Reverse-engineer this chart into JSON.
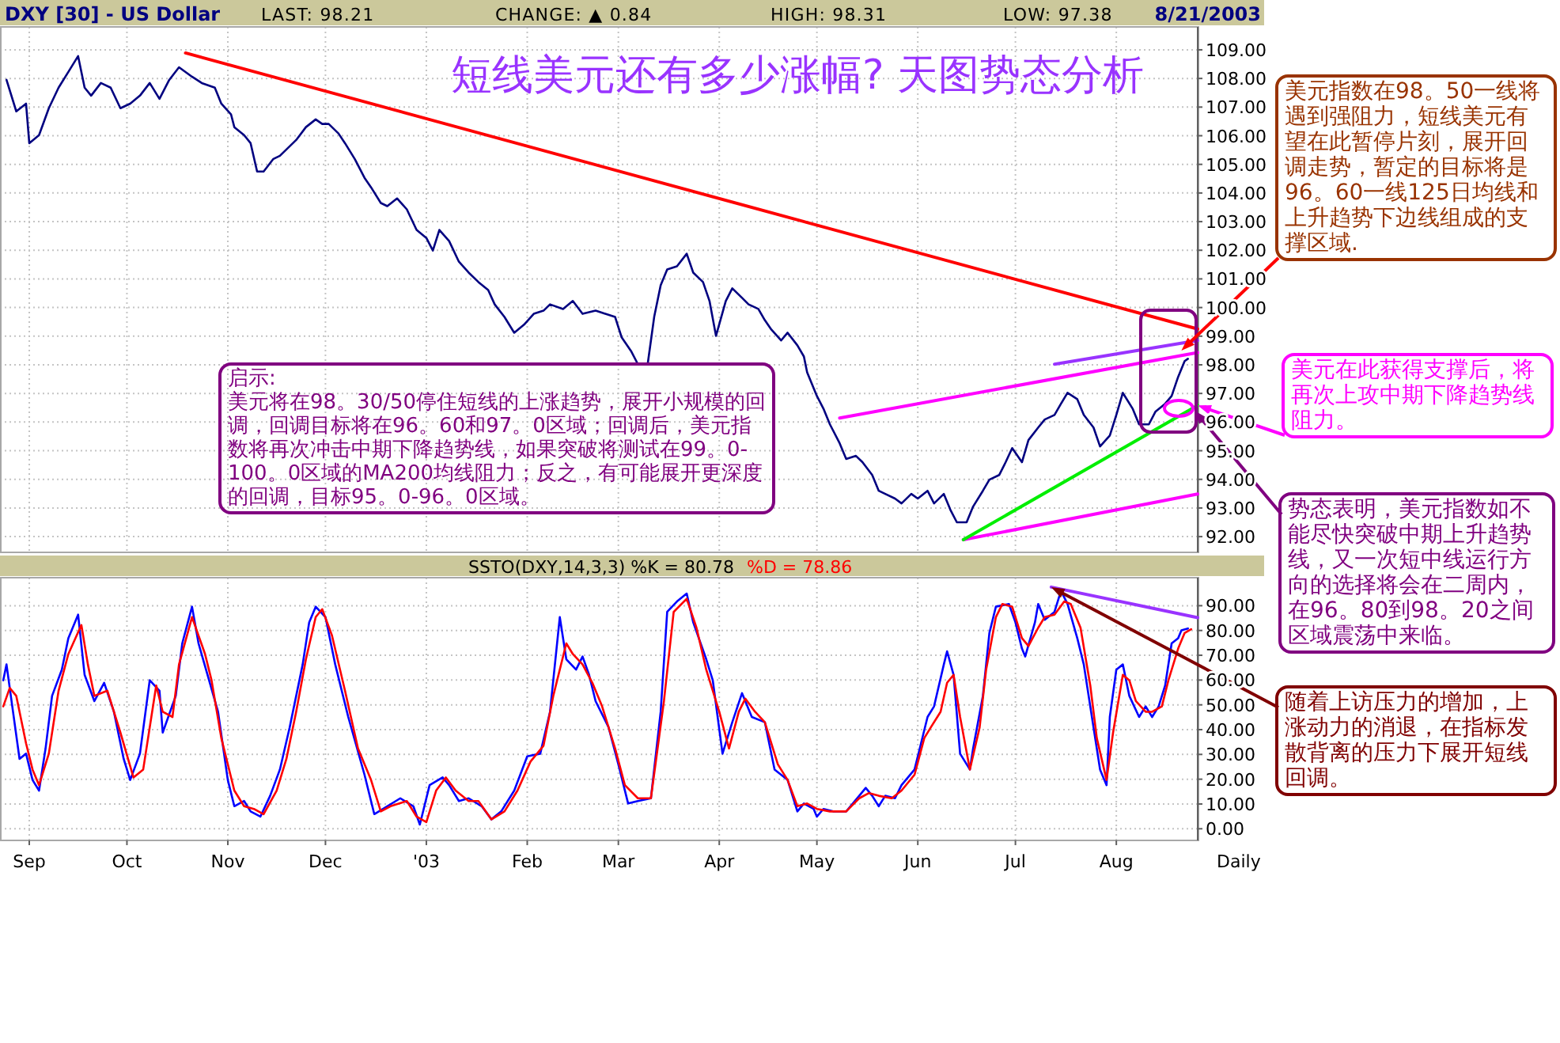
{
  "chart_data": [
    {
      "type": "line",
      "title": "DXY [30] - US Dollar",
      "subtitle": "短线美元还有多少涨幅? 天图势态分析",
      "annotations": [
        "LAST: 98.21",
        "CHANGE: ▲ 0.84",
        "HIGH: 98.31",
        "LOW: 97.38",
        "8/21/2003",
        "启示:\n美元将在98。30/50停住短线的上涨趋势，展开小规模的回调，回调目标将在96。60和97。0区域；回调后，美元指数将再次冲击中期下降趋势线，如果突破将测试在99。0-100。0区域的MA200均线阻力；反之，有可能展开更深度的回调，目标95。0-96。0区域。",
        {
          "text": "美元指数在98。50一线将遇到强阻力，短线美元有望在此暂停片刻，展开回调走势，暂定的目标将是96。60一线125日均线和上升趋势下边线组成的支撑区域.",
          "x": "2003-08-21",
          "y": 98.5
        },
        {
          "text": "美元在此获得支撑后，将再次上攻中期下降趋势线阻力。",
          "x": "2003-08-26",
          "y": 96.58
        },
        {
          "text": "势态表明，美元指数如不能尽快突破中期上升趋势线，又一次短中线运行方向的选择将会在二周内，在96。80到98。20之间区域震荡中来临。",
          "x": "2003-08-25",
          "y": 96.4
        }
      ],
      "xlim": [
        "2002-08-23",
        "2003-08-26"
      ],
      "xticks": [
        {
          "value": "2002-09-01",
          "label": null
        },
        {
          "value": "2002-10-01",
          "label": null
        },
        {
          "value": "2002-11-01",
          "label": null
        },
        {
          "value": "2002-12-01",
          "label": null
        },
        {
          "value": "2003-01-01",
          "label": null
        },
        {
          "value": "2003-02-01",
          "label": null
        },
        {
          "value": "2003-03-01",
          "label": null
        },
        {
          "value": "2003-04-01",
          "label": null
        },
        {
          "value": "2003-05-01",
          "label": null
        },
        {
          "value": "2003-06-01",
          "label": null
        },
        {
          "value": "2003-07-01",
          "label": null
        },
        {
          "value": "2003-08-01",
          "label": null
        }
      ],
      "ylim": [
        91.45,
        109.8
      ],
      "yticks": [
        {
          "value": 92,
          "label": "92.00"
        },
        {
          "value": 93,
          "label": "93.00"
        },
        {
          "value": 94,
          "label": "94.00"
        },
        {
          "value": 95,
          "label": "95.00"
        },
        {
          "value": 96,
          "label": "96.00"
        },
        {
          "value": 97,
          "label": "97.00"
        },
        {
          "value": 98,
          "label": "98.00"
        },
        {
          "value": 99,
          "label": "99.00"
        },
        {
          "value": 100,
          "label": "100.00"
        },
        {
          "value": 101,
          "label": "101.00"
        },
        {
          "value": 102,
          "label": "102.00"
        },
        {
          "value": 103,
          "label": "103.00"
        },
        {
          "value": 104,
          "label": "104.00"
        },
        {
          "value": 105,
          "label": "105.00"
        },
        {
          "value": 106,
          "label": "106.00"
        },
        {
          "value": 107,
          "label": "107.00"
        },
        {
          "value": 108,
          "label": "108.00"
        },
        {
          "value": 109,
          "label": "109.00"
        }
      ],
      "grid": true,
      "tick_labels": "y",
      "series": [
        {
          "color": "#000080",
          "x": [
            "2002-08-25",
            "2002-08-28",
            "2002-08-31",
            "2002-09-01",
            "2002-09-04",
            "2002-09-07",
            "2002-09-10",
            "2002-09-13",
            "2002-09-16",
            "2002-09-18",
            "2002-09-20",
            "2002-09-23",
            "2002-09-26",
            "2002-09-29",
            "2002-10-02",
            "2002-10-05",
            "2002-10-08",
            "2002-10-11",
            "2002-10-14",
            "2002-10-17",
            "2002-10-21",
            "2002-10-24",
            "2002-10-28",
            "2002-10-30",
            "2002-11-02",
            "2002-11-03",
            "2002-11-06",
            "2002-11-08",
            "2002-11-10",
            "2002-11-12",
            "2002-11-15",
            "2002-11-17",
            "2002-11-20",
            "2002-11-22",
            "2002-11-25",
            "2002-11-28",
            "2002-11-30",
            "2002-12-02",
            "2002-12-05",
            "2002-12-07",
            "2002-12-10",
            "2002-12-13",
            "2002-12-15",
            "2002-12-18",
            "2002-12-20",
            "2002-12-23",
            "2002-12-26",
            "2002-12-29",
            "2003-01-01",
            "2003-01-03",
            "2003-01-05",
            "2003-01-08",
            "2003-01-11",
            "2003-01-14",
            "2003-01-17",
            "2003-01-20",
            "2003-01-22",
            "2003-01-25",
            "2003-01-28",
            "2003-01-31",
            "2003-02-03",
            "2003-02-06",
            "2003-02-08",
            "2003-02-12",
            "2003-02-15",
            "2003-02-18",
            "2003-02-22",
            "2003-02-25",
            "2003-02-28",
            "2003-03-02",
            "2003-03-05",
            "2003-03-07",
            "2003-03-10",
            "2003-03-12",
            "2003-03-14",
            "2003-03-16",
            "2003-03-19",
            "2003-03-22",
            "2003-03-24",
            "2003-03-27",
            "2003-03-29",
            "2003-03-31",
            "2003-04-03",
            "2003-04-05",
            "2003-04-08",
            "2003-04-10",
            "2003-04-13",
            "2003-04-15",
            "2003-04-17",
            "2003-04-20",
            "2003-04-22",
            "2003-04-25",
            "2003-04-27",
            "2003-04-28",
            "2003-05-01",
            "2003-05-03",
            "2003-05-05",
            "2003-05-08",
            "2003-05-10",
            "2003-05-13",
            "2003-05-15",
            "2003-05-18",
            "2003-05-20",
            "2003-05-22",
            "2003-05-25",
            "2003-05-27",
            "2003-05-30",
            "2003-06-01",
            "2003-06-04",
            "2003-06-06",
            "2003-06-09",
            "2003-06-11",
            "2003-06-13",
            "2003-06-16",
            "2003-06-18",
            "2003-06-21",
            "2003-06-23",
            "2003-06-26",
            "2003-06-28",
            "2003-06-30",
            "2003-07-03",
            "2003-07-05",
            "2003-07-08",
            "2003-07-10",
            "2003-07-13",
            "2003-07-15",
            "2003-07-17",
            "2003-07-20",
            "2003-07-22",
            "2003-07-25",
            "2003-07-27",
            "2003-07-30",
            "2003-08-01",
            "2003-08-03",
            "2003-08-06",
            "2003-08-08",
            "2003-08-11",
            "2003-08-13",
            "2003-08-16",
            "2003-08-18",
            "2003-08-20",
            "2003-08-22",
            "2003-08-23"
          ],
          "values": [
            107.95,
            106.85,
            107.12,
            105.74,
            106.02,
            106.96,
            107.68,
            108.23,
            108.78,
            107.68,
            107.4,
            107.84,
            107.68,
            106.96,
            107.12,
            107.4,
            107.84,
            107.29,
            107.95,
            108.39,
            108.06,
            107.84,
            107.68,
            107.12,
            106.74,
            106.3,
            106.02,
            105.74,
            104.75,
            104.75,
            105.19,
            105.3,
            105.63,
            105.85,
            106.3,
            106.57,
            106.41,
            106.41,
            106.08,
            105.74,
            105.19,
            104.53,
            104.2,
            103.65,
            103.54,
            103.81,
            103.43,
            102.71,
            102.43,
            101.99,
            102.71,
            102.32,
            101.6,
            101.22,
            100.89,
            100.61,
            100.11,
            99.67,
            99.12,
            99.4,
            99.78,
            99.89,
            100.11,
            99.95,
            100.23,
            99.78,
            99.89,
            99.78,
            99.67,
            98.96,
            98.46,
            98.02,
            98.02,
            99.67,
            100.78,
            101.33,
            101.44,
            101.88,
            101.22,
            100.89,
            100.23,
            99.01,
            100.23,
            100.67,
            100.34,
            100.11,
            99.95,
            99.56,
            99.23,
            98.85,
            99.12,
            98.68,
            98.29,
            97.74,
            96.91,
            96.47,
            95.92,
            95.26,
            94.71,
            94.82,
            94.6,
            94.15,
            93.6,
            93.49,
            93.33,
            93.16,
            93.49,
            93.33,
            93.6,
            93.16,
            93.49,
            92.94,
            92.5,
            92.5,
            93.05,
            93.6,
            93.99,
            94.15,
            94.6,
            95.09,
            94.6,
            95.37,
            95.81,
            96.09,
            96.25,
            96.64,
            97.02,
            96.8,
            96.25,
            95.81,
            95.15,
            95.53,
            96.25,
            97.02,
            96.47,
            95.92,
            95.92,
            96.36,
            96.64,
            96.91,
            97.58,
            98.13,
            98.21
          ]
        },
        {
          "type": "line",
          "color": "#ff0000",
          "x": [
            "2002-10-19",
            "2003-08-26"
          ],
          "values": [
            108.89,
            99.25
          ]
        },
        {
          "type": "line",
          "color": "#9933ff",
          "x": [
            "2003-07-13",
            "2003-08-26"
          ],
          "values": [
            98.02,
            98.85
          ]
        },
        {
          "type": "line",
          "color": "#ff00ff",
          "x": [
            "2003-05-08",
            "2003-08-26"
          ],
          "values": [
            96.14,
            98.43
          ]
        },
        {
          "type": "line",
          "color": "#ff00ff",
          "x": [
            "2003-06-15",
            "2003-08-26"
          ],
          "values": [
            91.89,
            93.49
          ]
        },
        {
          "type": "line",
          "color": "#00ee00",
          "x": [
            "2003-06-15",
            "2003-08-26"
          ],
          "values": [
            91.89,
            96.58
          ]
        }
      ]
    },
    {
      "type": "line",
      "title": "SSTO(DXY,14,3,3) %K = 80.78",
      "xlabel": "Daily",
      "annotations": [
        {
          "text": "随着上访压力的增加，上涨动力的消退，在指标发散背离的压力下展开短线回调。",
          "x": "2003-07-12",
          "y": 97.5
        }
      ],
      "xlim": [
        "2002-08-23",
        "2003-08-26"
      ],
      "xticks": [
        {
          "value": "2002-09-01",
          "label": "Sep"
        },
        {
          "value": "2002-10-01",
          "label": "Oct"
        },
        {
          "value": "2002-11-01",
          "label": "Nov"
        },
        {
          "value": "2002-12-01",
          "label": "Dec"
        },
        {
          "value": "2003-01-01",
          "label": "'03"
        },
        {
          "value": "2003-02-01",
          "label": "Feb"
        },
        {
          "value": "2003-03-01",
          "label": "Mar"
        },
        {
          "value": "2003-04-01",
          "label": "Apr"
        },
        {
          "value": "2003-05-01",
          "label": "May"
        },
        {
          "value": "2003-06-01",
          "label": "Jun"
        },
        {
          "value": "2003-07-01",
          "label": "Jul"
        },
        {
          "value": "2003-08-01",
          "label": "Aug"
        }
      ],
      "ylim": [
        -4.7,
        101.3
      ],
      "yticks": [
        {
          "value": 0,
          "label": "0.00"
        },
        {
          "value": 10,
          "label": "10.00"
        },
        {
          "value": 20,
          "label": "20.00"
        },
        {
          "value": 30,
          "label": "30.00"
        },
        {
          "value": 40,
          "label": "40.00"
        },
        {
          "value": 50,
          "label": "50.00"
        },
        {
          "value": 60,
          "label": "60.00"
        },
        {
          "value": 70,
          "label": "70.00"
        },
        {
          "value": 80,
          "label": "80.00"
        },
        {
          "value": 90,
          "label": "90.00"
        }
      ],
      "grid": true,
      "series": [
        {
          "color": "#0000ff",
          "x": [
            "2002-08-24",
            "2002-08-25",
            "2002-08-27",
            "2002-08-29",
            "2002-08-31",
            "2002-09-02",
            "2002-09-04",
            "2002-09-06",
            "2002-09-08",
            "2002-09-11",
            "2002-09-13",
            "2002-09-16",
            "2002-09-18",
            "2002-09-21",
            "2002-09-24",
            "2002-09-27",
            "2002-09-30",
            "2002-10-02",
            "2002-10-05",
            "2002-10-08",
            "2002-10-11",
            "2002-10-12",
            "2002-10-16",
            "2002-10-18",
            "2002-10-21",
            "2002-10-23",
            "2002-10-26",
            "2002-10-29",
            "2002-11-01",
            "2002-11-03",
            "2002-11-06",
            "2002-11-08",
            "2002-11-11",
            "2002-11-14",
            "2002-11-17",
            "2002-11-20",
            "2002-11-24",
            "2002-11-26",
            "2002-11-28",
            "2002-12-01",
            "2002-12-04",
            "2002-12-08",
            "2002-12-13",
            "2002-12-16",
            "2002-12-20",
            "2002-12-24",
            "2002-12-28",
            "2002-12-30",
            "2003-01-02",
            "2003-01-06",
            "2003-01-08",
            "2003-01-11",
            "2003-01-14",
            "2003-01-18",
            "2003-01-21",
            "2003-01-24",
            "2003-01-28",
            "2003-02-01",
            "2003-02-05",
            "2003-02-08",
            "2003-02-11",
            "2003-02-13",
            "2003-02-16",
            "2003-02-18",
            "2003-02-20",
            "2003-02-22",
            "2003-02-26",
            "2003-03-01",
            "2003-03-04",
            "2003-03-07",
            "2003-03-11",
            "2003-03-14",
            "2003-03-16",
            "2003-03-19",
            "2003-03-22",
            "2003-03-24",
            "2003-03-28",
            "2003-03-30",
            "2003-04-02",
            "2003-04-05",
            "2003-04-08",
            "2003-04-11",
            "2003-04-15",
            "2003-04-18",
            "2003-04-22",
            "2003-04-25",
            "2003-04-27",
            "2003-04-30",
            "2003-05-01",
            "2003-05-03",
            "2003-05-06",
            "2003-05-10",
            "2003-05-14",
            "2003-05-16",
            "2003-05-18",
            "2003-05-20",
            "2003-05-22",
            "2003-05-25",
            "2003-05-27",
            "2003-05-31",
            "2003-06-02",
            "2003-06-04",
            "2003-06-06",
            "2003-06-09",
            "2003-06-10",
            "2003-06-12",
            "2003-06-14",
            "2003-06-17",
            "2003-06-18",
            "2003-06-21",
            "2003-06-23",
            "2003-06-25",
            "2003-06-29",
            "2003-07-01",
            "2003-07-03",
            "2003-07-04",
            "2003-07-07",
            "2003-07-08",
            "2003-07-10",
            "2003-07-13",
            "2003-07-15",
            "2003-07-17",
            "2003-07-20",
            "2003-07-22",
            "2003-07-25",
            "2003-07-27",
            "2003-07-29",
            "2003-07-30",
            "2003-08-01",
            "2003-08-03",
            "2003-08-05",
            "2003-08-08",
            "2003-08-10",
            "2003-08-12",
            "2003-08-14",
            "2003-08-16",
            "2003-08-18",
            "2003-08-20",
            "2003-08-21",
            "2003-08-23"
          ],
          "values": [
            59.9,
            66.3,
            47.2,
            28.2,
            30.3,
            19.7,
            15.4,
            32.4,
            53.6,
            64.2,
            76.9,
            86.4,
            62.1,
            51.5,
            58.9,
            47.2,
            28.2,
            19.7,
            30.3,
            59.9,
            55.7,
            38.8,
            53.6,
            74.8,
            89.6,
            74.8,
            61.0,
            47.2,
            19.7,
            9.1,
            11.2,
            7.0,
            4.9,
            13.3,
            23.9,
            40.9,
            66.3,
            83.3,
            89.6,
            85.4,
            66.3,
            45.1,
            21.8,
            5.9,
            9.1,
            12.3,
            9.1,
            1.7,
            17.6,
            20.7,
            17.6,
            11.2,
            12.3,
            9.1,
            3.8,
            7.0,
            15.4,
            29.2,
            30.3,
            47.2,
            85.4,
            68.4,
            64.2,
            69.5,
            62.1,
            51.5,
            40.9,
            26.0,
            10.2,
            11.2,
            12.3,
            47.2,
            87.5,
            91.7,
            94.9,
            83.3,
            68.4,
            59.9,
            30.3,
            43.0,
            54.7,
            45.1,
            43.0,
            23.9,
            19.7,
            7.0,
            10.2,
            8.0,
            4.9,
            8.0,
            7.0,
            7.0,
            13.3,
            16.5,
            13.3,
            9.1,
            13.3,
            12.3,
            17.6,
            23.9,
            34.5,
            45.1,
            49.4,
            66.3,
            71.6,
            62.1,
            30.3,
            23.9,
            32.4,
            53.6,
            79.0,
            89.6,
            90.7,
            83.3,
            72.7,
            69.5,
            83.3,
            90.7,
            84.3,
            87.5,
            96.0,
            90.7,
            76.9,
            66.3,
            40.9,
            23.9,
            17.6,
            45.1,
            64.2,
            66.3,
            53.6,
            45.1,
            49.4,
            45.1,
            49.4,
            57.8,
            74.8,
            76.9,
            80.1,
            80.8
          ]
        },
        {
          "name": "%D = 78.86",
          "color": "#ff0000",
          "x": [
            "2002-08-24",
            "2002-08-26",
            "2002-08-28",
            "2002-08-31",
            "2002-09-02",
            "2002-09-04",
            "2002-09-07",
            "2002-09-10",
            "2002-09-13",
            "2002-09-17",
            "2002-09-19",
            "2002-09-21",
            "2002-09-25",
            "2002-09-29",
            "2002-10-03",
            "2002-10-06",
            "2002-10-10",
            "2002-10-12",
            "2002-10-15",
            "2002-10-17",
            "2002-10-21",
            "2002-10-25",
            "2002-10-27",
            "2002-10-30",
            "2002-11-03",
            "2002-11-06",
            "2002-11-09",
            "2002-11-12",
            "2002-11-16",
            "2002-11-19",
            "2002-11-22",
            "2002-11-25",
            "2002-11-28",
            "2002-11-30",
            "2002-12-03",
            "2002-12-07",
            "2002-12-11",
            "2002-12-15",
            "2002-12-18",
            "2002-12-21",
            "2002-12-26",
            "2002-12-29",
            "2003-01-01",
            "2003-01-04",
            "2003-01-07",
            "2003-01-10",
            "2003-01-14",
            "2003-01-17",
            "2003-01-21",
            "2003-01-25",
            "2003-01-29",
            "2003-02-02",
            "2003-02-06",
            "2003-02-09",
            "2003-02-13",
            "2003-02-15",
            "2003-02-18",
            "2003-02-21",
            "2003-02-24",
            "2003-02-28",
            "2003-03-03",
            "2003-03-07",
            "2003-03-11",
            "2003-03-15",
            "2003-03-18",
            "2003-03-22",
            "2003-03-25",
            "2003-03-28",
            "2003-04-01",
            "2003-04-04",
            "2003-04-07",
            "2003-04-09",
            "2003-04-12",
            "2003-04-15",
            "2003-04-19",
            "2003-04-22",
            "2003-04-25",
            "2003-04-28",
            "2003-05-01",
            "2003-05-05",
            "2003-05-10",
            "2003-05-14",
            "2003-05-17",
            "2003-05-20",
            "2003-05-24",
            "2003-05-27",
            "2003-05-31",
            "2003-06-03",
            "2003-06-05",
            "2003-06-08",
            "2003-06-10",
            "2003-06-12",
            "2003-06-14",
            "2003-06-17",
            "2003-06-20",
            "2003-06-22",
            "2003-06-25",
            "2003-06-27",
            "2003-06-30",
            "2003-07-03",
            "2003-07-05",
            "2003-07-08",
            "2003-07-10",
            "2003-07-13",
            "2003-07-16",
            "2003-07-18",
            "2003-07-21",
            "2003-07-24",
            "2003-07-26",
            "2003-07-29",
            "2003-07-31",
            "2003-08-03",
            "2003-08-05",
            "2003-08-07",
            "2003-08-10",
            "2003-08-12",
            "2003-08-15",
            "2003-08-17",
            "2003-08-20",
            "2003-08-22",
            "2003-08-24"
          ],
          "values": [
            49.4,
            56.8,
            53.6,
            34.5,
            23.9,
            17.6,
            30.3,
            55.7,
            70.5,
            82.2,
            66.3,
            53.6,
            55.7,
            38.8,
            20.7,
            23.9,
            57.8,
            47.2,
            45.1,
            66.3,
            85.4,
            70.5,
            59.9,
            36.6,
            15.4,
            9.1,
            8.0,
            5.9,
            15.4,
            28.2,
            47.2,
            68.4,
            85.4,
            88.6,
            78.0,
            55.7,
            32.4,
            19.7,
            7.0,
            9.1,
            11.2,
            4.9,
            2.7,
            15.4,
            20.7,
            15.4,
            11.2,
            11.2,
            3.8,
            7.0,
            15.4,
            27.1,
            33.5,
            53.6,
            74.8,
            70.5,
            66.3,
            58.9,
            49.4,
            32.4,
            17.6,
            12.3,
            12.3,
            51.5,
            87.5,
            92.8,
            81.1,
            64.2,
            47.2,
            32.4,
            47.2,
            52.5,
            47.2,
            43.0,
            26.0,
            19.7,
            9.1,
            10.2,
            8.0,
            7.0,
            7.0,
            12.3,
            14.4,
            13.3,
            12.3,
            15.4,
            21.8,
            36.6,
            40.9,
            47.2,
            58.9,
            62.1,
            45.1,
            23.9,
            40.9,
            64.2,
            85.4,
            90.7,
            89.6,
            76.9,
            73.7,
            81.1,
            85.4,
            86.4,
            91.7,
            90.7,
            81.1,
            57.8,
            36.6,
            19.7,
            38.8,
            62.1,
            59.9,
            51.5,
            47.2,
            47.2,
            49.4,
            59.9,
            72.7,
            79.0,
            80.5
          ]
        },
        {
          "type": "line",
          "color": "#9933ff",
          "x": [
            "2003-07-12",
            "2003-08-26"
          ],
          "values": [
            97.5,
            85.2
          ]
        }
      ]
    }
  ]
}
